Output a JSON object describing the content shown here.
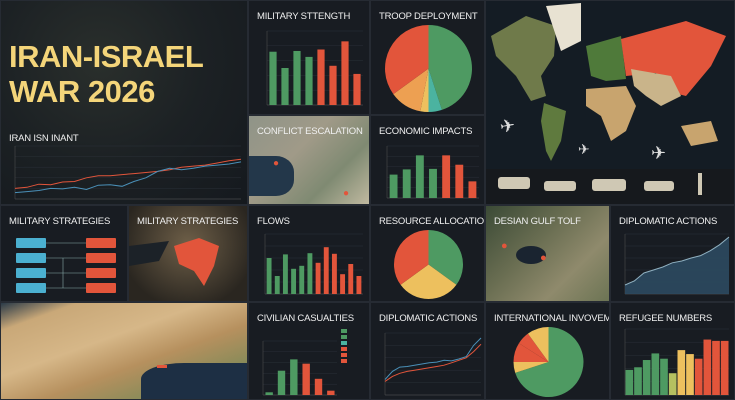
{
  "title": {
    "line1": "IRAN-ISRAEL",
    "line2": "WAR 2026"
  },
  "colors": {
    "green": "#4e9a62",
    "red": "#e2553b",
    "yellow": "#edc05e",
    "orange": "#eda052",
    "teal": "#4bb3a0",
    "blue": "#4a90b8",
    "title": "#f4d57a"
  },
  "panels": {
    "iran_line": "IRAN ISN INANT",
    "military_strength": "MILITARY STTENGTH",
    "troop_deployment": "TROOP DEPLOYMENT",
    "conflict_escalation": "CONFLICT ESCALATION",
    "economic_impacts": "ECONOMIC IMPACTS",
    "military_strategies_1": "MILITARY STRATEGIES",
    "military_strategies_2": "MILITARY STRATEGIES",
    "flows": "FLOWS",
    "resource_allocation": "RESOURCE ALLOCATION",
    "gulf_map": "DESIAN GULF TOLF",
    "diplomatic_actions_area": "DIPLOMATIC ACTIONS",
    "civilian_casualties": "CIVILIAN CASUALTIES",
    "diplomatic_actions_line": "DIPLOMATIC ACTIONS",
    "international_involvement": "INTERNATIONAL INVOVEMENT",
    "refugee_numbers": "REFUGEE NUMBERS"
  },
  "icons": [
    "airplane-icon",
    "tank-icon",
    "missile-icon",
    "map-pin-icon",
    "ship-icon"
  ],
  "chart_data": [
    {
      "id": "iran_line",
      "type": "line",
      "title": "IRAN ISN INANT",
      "x": [
        1,
        2,
        3,
        4,
        5,
        6,
        7,
        8,
        9,
        10,
        11,
        12,
        13,
        14,
        15,
        16,
        17,
        18,
        19,
        20
      ],
      "series": [
        {
          "color": "#e2553b",
          "values": [
            20,
            22,
            28,
            27,
            32,
            33,
            40,
            44,
            44,
            46,
            48,
            50,
            52,
            55,
            60,
            62,
            64,
            68,
            72,
            75
          ]
        },
        {
          "color": "#4a90b8",
          "values": [
            12,
            14,
            16,
            20,
            19,
            22,
            18,
            26,
            27,
            24,
            33,
            40,
            52,
            58,
            55,
            58,
            62,
            64,
            66,
            70
          ]
        }
      ],
      "ylim": [
        0,
        100
      ],
      "grid": true
    },
    {
      "id": "military_strength",
      "type": "bar",
      "title": "MILITARY STTENGTH",
      "values": [
        72,
        50,
        73,
        65,
        75,
        53,
        86,
        42
      ],
      "colors": [
        "green",
        "green",
        "green",
        "green",
        "red",
        "red",
        "red",
        "red"
      ],
      "ylim": [
        0,
        100
      ],
      "grid": true
    },
    {
      "id": "troop_deployment",
      "type": "pie",
      "title": "TROOP DEPLOYMENT",
      "values": [
        45,
        5,
        3,
        12,
        35
      ],
      "colors": [
        "green",
        "teal",
        "yellow",
        "orange",
        "red"
      ]
    },
    {
      "id": "economic_impacts",
      "type": "bar",
      "title": "ECONOMIC IMPACTS",
      "values": [
        45,
        55,
        82,
        56,
        82,
        64,
        32
      ],
      "colors": [
        "green",
        "green",
        "green",
        "green",
        "red",
        "red",
        "red"
      ],
      "ylim": [
        0,
        100
      ],
      "grid": true
    },
    {
      "id": "flows",
      "type": "bar",
      "title": "FLOWS",
      "values": [
        60,
        30,
        66,
        42,
        47,
        68,
        52,
        78,
        67,
        33,
        50,
        30
      ],
      "colors": [
        "green",
        "green",
        "green",
        "green",
        "green",
        "green",
        "red",
        "red",
        "red",
        "red",
        "red",
        "red"
      ],
      "ylim": [
        0,
        100
      ],
      "grid": true
    },
    {
      "id": "resource_allocation",
      "type": "pie",
      "title": "RESOURCE ALLOCATION",
      "values": [
        35,
        30,
        35
      ],
      "colors": [
        "green",
        "yellow",
        "red"
      ]
    },
    {
      "id": "diplomatic_actions_area",
      "type": "area",
      "title": "DIPLOMATIC ACTIONS",
      "x": [
        1,
        2,
        3,
        4,
        5,
        6,
        7,
        8,
        9,
        10,
        11,
        12
      ],
      "series": [
        {
          "color": "#4a90b8",
          "values": [
            15,
            22,
            35,
            40,
            45,
            52,
            55,
            60,
            64,
            72,
            82,
            95
          ]
        }
      ],
      "ylim": [
        0,
        100
      ],
      "grid": true
    },
    {
      "id": "civilian_casualties",
      "type": "bar",
      "title": "CIVILIAN CASUALTIES",
      "values": [
        5,
        45,
        66,
        58,
        30,
        8
      ],
      "colors": [
        "green",
        "green",
        "green",
        "red",
        "red",
        "red"
      ],
      "ylim": [
        0,
        100
      ],
      "grid": true,
      "legend_colors": [
        "green",
        "green",
        "teal",
        "red",
        "red",
        "red"
      ]
    },
    {
      "id": "diplomatic_actions_line",
      "type": "line",
      "title": "DIPLOMATIC ACTIONS",
      "x": [
        1,
        2,
        3,
        4,
        5,
        6,
        7,
        8,
        9,
        10,
        11,
        12,
        13,
        14
      ],
      "series": [
        {
          "color": "#4a90b8",
          "values": [
            25,
            38,
            45,
            46,
            48,
            50,
            52,
            53,
            56,
            55,
            58,
            62,
            80,
            92
          ]
        },
        {
          "color": "#e2553b",
          "values": [
            22,
            30,
            35,
            38,
            40,
            42,
            44,
            46,
            48,
            52,
            56,
            60,
            70,
            82
          ]
        }
      ],
      "ylim": [
        0,
        100
      ],
      "grid": true
    },
    {
      "id": "international_involvement",
      "type": "pie",
      "title": "INTERNATIONAL INVOVEMENT",
      "values": [
        70,
        5,
        9,
        6,
        10
      ],
      "colors": [
        "green",
        "yellow",
        "red",
        "red",
        "yellow"
      ]
    },
    {
      "id": "refugee_numbers",
      "type": "bar",
      "title": "REFUGEE NUMBERS",
      "values": [
        38,
        42,
        53,
        63,
        55,
        33,
        68,
        62,
        55,
        84,
        82,
        82
      ],
      "colors": [
        "green",
        "green",
        "green",
        "green",
        "green",
        "#b5c060",
        "yellow",
        "yellow",
        "red",
        "red",
        "red",
        "red"
      ],
      "ylim": [
        0,
        100
      ],
      "grid": true,
      "gap": 0
    }
  ]
}
